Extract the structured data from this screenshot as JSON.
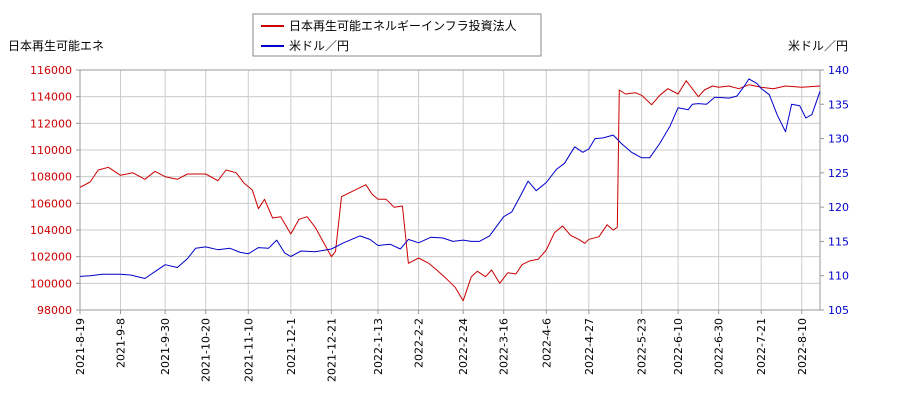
{
  "chart_data": {
    "type": "line",
    "legend": {
      "placement": "top-center",
      "entries": [
        {
          "key": "left",
          "label": "日本再生可能エネルギーインフラ投資法人",
          "color": "#cc0000"
        },
        {
          "key": "right",
          "label": "米ドル／円",
          "color": "#0000cc"
        }
      ]
    },
    "y_left": {
      "label": "日本再生可能エネ",
      "range": [
        98000,
        116000
      ],
      "ticks": [
        98000,
        100000,
        102000,
        104000,
        106000,
        108000,
        110000,
        112000,
        114000,
        116000
      ],
      "tick_labels": [
        "98000",
        "100000",
        "102000",
        "104000",
        "106000",
        "108000",
        "110000",
        "112000",
        "114000",
        "116000"
      ],
      "tick_color": "#cc0000"
    },
    "y_right": {
      "label": "米ドル／円",
      "range": [
        105,
        140
      ],
      "ticks": [
        105,
        110,
        115,
        120,
        125,
        130,
        135,
        140
      ],
      "tick_labels": [
        "105",
        "110",
        "115",
        "120",
        "125",
        "130",
        "135",
        "140"
      ],
      "tick_color": "#0000cc"
    },
    "x_axis": {
      "start": "2021-08-19",
      "end": "2022-08-19",
      "ticks": [
        "2021-8-19",
        "2021-9-8",
        "2021-9-30",
        "2021-10-20",
        "2021-11-10",
        "2021-12-1",
        "2021-12-21",
        "2022-1-13",
        "2022-2-2",
        "2022-2-24",
        "2022-3-16",
        "2022-4-6",
        "2022-4-27",
        "2022-5-23",
        "2022-6-10",
        "2022-6-30",
        "2022-7-21",
        "2022-8-10"
      ]
    },
    "grid": true,
    "series": [
      {
        "name": "日本再生可能エネルギーインフラ投資法人",
        "axis": "left",
        "color": "#cc0000",
        "points": [
          [
            "2021-08-19",
            107200
          ],
          [
            "2021-08-24",
            107600
          ],
          [
            "2021-08-28",
            108500
          ],
          [
            "2021-09-02",
            108700
          ],
          [
            "2021-09-08",
            108100
          ],
          [
            "2021-09-14",
            108300
          ],
          [
            "2021-09-20",
            107800
          ],
          [
            "2021-09-25",
            108400
          ],
          [
            "2021-09-30",
            108000
          ],
          [
            "2021-10-06",
            107800
          ],
          [
            "2021-10-11",
            108200
          ],
          [
            "2021-10-20",
            108200
          ],
          [
            "2021-10-26",
            107700
          ],
          [
            "2021-10-30",
            108500
          ],
          [
            "2021-11-04",
            108300
          ],
          [
            "2021-11-08",
            107500
          ],
          [
            "2021-11-12",
            107000
          ],
          [
            "2021-11-15",
            105600
          ],
          [
            "2021-11-18",
            106300
          ],
          [
            "2021-11-22",
            104900
          ],
          [
            "2021-11-26",
            105000
          ],
          [
            "2021-12-01",
            103700
          ],
          [
            "2021-12-05",
            104800
          ],
          [
            "2021-12-09",
            105000
          ],
          [
            "2021-12-13",
            104200
          ],
          [
            "2021-12-17",
            103100
          ],
          [
            "2021-12-21",
            102000
          ],
          [
            "2021-12-23",
            102400
          ],
          [
            "2021-12-26",
            106500
          ],
          [
            "2021-12-30",
            106800
          ],
          [
            "2022-01-03",
            107100
          ],
          [
            "2022-01-07",
            107400
          ],
          [
            "2022-01-10",
            106700
          ],
          [
            "2022-01-13",
            106300
          ],
          [
            "2022-01-17",
            106300
          ],
          [
            "2022-01-21",
            105700
          ],
          [
            "2022-01-25",
            105800
          ],
          [
            "2022-01-28",
            101500
          ],
          [
            "2022-02-02",
            101900
          ],
          [
            "2022-02-07",
            101500
          ],
          [
            "2022-02-11",
            101000
          ],
          [
            "2022-02-16",
            100300
          ],
          [
            "2022-02-20",
            99700
          ],
          [
            "2022-02-24",
            98700
          ],
          [
            "2022-02-28",
            100500
          ],
          [
            "2022-03-03",
            100900
          ],
          [
            "2022-03-07",
            100500
          ],
          [
            "2022-03-10",
            101000
          ],
          [
            "2022-03-14",
            100000
          ],
          [
            "2022-03-18",
            100800
          ],
          [
            "2022-03-22",
            100700
          ],
          [
            "2022-03-25",
            101400
          ],
          [
            "2022-03-29",
            101700
          ],
          [
            "2022-04-02",
            101800
          ],
          [
            "2022-04-06",
            102500
          ],
          [
            "2022-04-10",
            103800
          ],
          [
            "2022-04-14",
            104300
          ],
          [
            "2022-04-18",
            103600
          ],
          [
            "2022-04-22",
            103300
          ],
          [
            "2022-04-25",
            103000
          ],
          [
            "2022-04-27",
            103300
          ],
          [
            "2022-05-02",
            103500
          ],
          [
            "2022-05-06",
            104400
          ],
          [
            "2022-05-09",
            104000
          ],
          [
            "2022-05-11",
            104200
          ],
          [
            "2022-05-12",
            114500
          ],
          [
            "2022-05-15",
            114200
          ],
          [
            "2022-05-20",
            114300
          ],
          [
            "2022-05-23",
            114100
          ],
          [
            "2022-05-28",
            113400
          ],
          [
            "2022-06-01",
            114100
          ],
          [
            "2022-06-05",
            114600
          ],
          [
            "2022-06-10",
            114200
          ],
          [
            "2022-06-14",
            115200
          ],
          [
            "2022-06-17",
            114600
          ],
          [
            "2022-06-20",
            114000
          ],
          [
            "2022-06-23",
            114500
          ],
          [
            "2022-06-27",
            114800
          ],
          [
            "2022-06-30",
            114700
          ],
          [
            "2022-07-05",
            114800
          ],
          [
            "2022-07-10",
            114600
          ],
          [
            "2022-07-15",
            114900
          ],
          [
            "2022-07-21",
            114700
          ],
          [
            "2022-07-27",
            114600
          ],
          [
            "2022-08-02",
            114800
          ],
          [
            "2022-08-10",
            114700
          ],
          [
            "2022-08-19",
            114800
          ]
        ]
      },
      {
        "name": "米ドル／円",
        "axis": "right",
        "color": "#0000cc",
        "points": [
          [
            "2021-08-19",
            109.9
          ],
          [
            "2021-08-24",
            110.0
          ],
          [
            "2021-08-30",
            110.2
          ],
          [
            "2021-09-08",
            110.2
          ],
          [
            "2021-09-13",
            110.1
          ],
          [
            "2021-09-20",
            109.6
          ],
          [
            "2021-09-25",
            110.6
          ],
          [
            "2021-09-30",
            111.6
          ],
          [
            "2021-10-06",
            111.2
          ],
          [
            "2021-10-11",
            112.5
          ],
          [
            "2021-10-15",
            114.0
          ],
          [
            "2021-10-20",
            114.2
          ],
          [
            "2021-10-26",
            113.8
          ],
          [
            "2021-11-01",
            114.0
          ],
          [
            "2021-11-06",
            113.4
          ],
          [
            "2021-11-10",
            113.2
          ],
          [
            "2021-11-15",
            114.1
          ],
          [
            "2021-11-20",
            114.0
          ],
          [
            "2021-11-24",
            115.2
          ],
          [
            "2021-11-28",
            113.3
          ],
          [
            "2021-12-01",
            112.8
          ],
          [
            "2021-12-06",
            113.6
          ],
          [
            "2021-12-13",
            113.5
          ],
          [
            "2021-12-21",
            113.9
          ],
          [
            "2021-12-27",
            114.8
          ],
          [
            "2022-01-04",
            115.8
          ],
          [
            "2022-01-09",
            115.3
          ],
          [
            "2022-01-13",
            114.4
          ],
          [
            "2022-01-19",
            114.6
          ],
          [
            "2022-01-24",
            113.9
          ],
          [
            "2022-01-28",
            115.3
          ],
          [
            "2022-02-02",
            114.8
          ],
          [
            "2022-02-08",
            115.6
          ],
          [
            "2022-02-14",
            115.5
          ],
          [
            "2022-02-19",
            115.0
          ],
          [
            "2022-02-24",
            115.2
          ],
          [
            "2022-02-28",
            115.0
          ],
          [
            "2022-03-04",
            115.0
          ],
          [
            "2022-03-09",
            115.8
          ],
          [
            "2022-03-16",
            118.6
          ],
          [
            "2022-03-20",
            119.3
          ],
          [
            "2022-03-24",
            121.5
          ],
          [
            "2022-03-28",
            123.8
          ],
          [
            "2022-04-01",
            122.4
          ],
          [
            "2022-04-06",
            123.6
          ],
          [
            "2022-04-11",
            125.5
          ],
          [
            "2022-04-15",
            126.4
          ],
          [
            "2022-04-20",
            128.8
          ],
          [
            "2022-04-24",
            128.0
          ],
          [
            "2022-04-27",
            128.5
          ],
          [
            "2022-04-30",
            130.0
          ],
          [
            "2022-05-04",
            130.1
          ],
          [
            "2022-05-09",
            130.5
          ],
          [
            "2022-05-13",
            129.3
          ],
          [
            "2022-05-18",
            128.0
          ],
          [
            "2022-05-23",
            127.2
          ],
          [
            "2022-05-27",
            127.2
          ],
          [
            "2022-06-01",
            129.3
          ],
          [
            "2022-06-06",
            131.8
          ],
          [
            "2022-06-10",
            134.5
          ],
          [
            "2022-06-15",
            134.2
          ],
          [
            "2022-06-17",
            135.0
          ],
          [
            "2022-06-20",
            135.1
          ],
          [
            "2022-06-24",
            135.0
          ],
          [
            "2022-06-28",
            136.0
          ],
          [
            "2022-06-30",
            136.0
          ],
          [
            "2022-07-05",
            135.9
          ],
          [
            "2022-07-09",
            136.2
          ],
          [
            "2022-07-13",
            137.8
          ],
          [
            "2022-07-15",
            138.7
          ],
          [
            "2022-07-19",
            138.0
          ],
          [
            "2022-07-21",
            137.3
          ],
          [
            "2022-07-25",
            136.4
          ],
          [
            "2022-07-29",
            133.4
          ],
          [
            "2022-08-02",
            131.0
          ],
          [
            "2022-08-05",
            135.0
          ],
          [
            "2022-08-09",
            134.8
          ],
          [
            "2022-08-12",
            133.0
          ],
          [
            "2022-08-15",
            133.5
          ],
          [
            "2022-08-19",
            136.9
          ]
        ]
      }
    ]
  }
}
